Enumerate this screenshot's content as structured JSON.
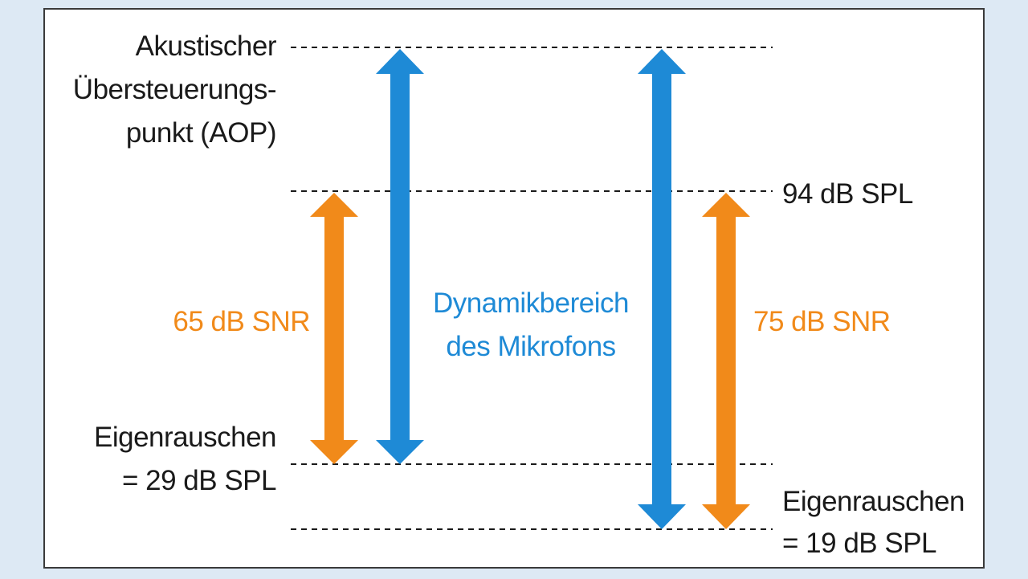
{
  "labels": {
    "aop": [
      "Akustischer",
      "Übersteuerungs-",
      "punkt (AOP)"
    ],
    "ref_level": "94 dB SPL",
    "noise_left": [
      "Eigenrauschen",
      "= 29 dB SPL"
    ],
    "noise_right": [
      "Eigenrauschen",
      "= 19 dB SPL"
    ],
    "snr_left": "65 dB SNR",
    "snr_right": "75 dB SNR",
    "dynamic_range": [
      "Dynamikbereich",
      "des Mikrofons"
    ]
  },
  "colors": {
    "background": "#dde9f4",
    "panel": "#ffffff",
    "border": "#3a3a3a",
    "text": "#1a1a1a",
    "blue": "#1e8ad6",
    "orange": "#f18a1a"
  }
}
